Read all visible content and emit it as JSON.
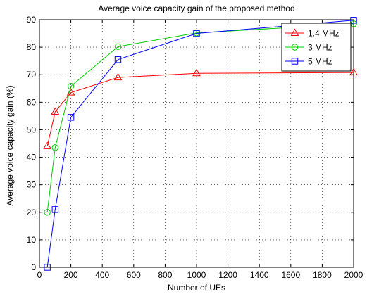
{
  "chart_data": {
    "type": "line",
    "title": "Average voice capacity gain of the proposed method",
    "xlabel": "Number of UEs",
    "ylabel": "Average voice capacity gain (%)",
    "xlim": [
      0,
      2000
    ],
    "ylim": [
      0,
      90
    ],
    "xticks": [
      0,
      200,
      400,
      600,
      800,
      1000,
      1200,
      1400,
      1600,
      1800,
      2000
    ],
    "yticks": [
      0,
      10,
      20,
      30,
      40,
      50,
      60,
      70,
      80,
      90
    ],
    "grid": true,
    "legend_position": "top-right",
    "series": [
      {
        "name": "1.4 MHz",
        "color": "#ff0000",
        "marker": "triangle",
        "x": [
          50,
          100,
          200,
          500,
          1000,
          2000
        ],
        "y": [
          44,
          56.5,
          63.5,
          69,
          70.5,
          70.8
        ]
      },
      {
        "name": "3 MHz",
        "color": "#00cc00",
        "marker": "circle",
        "x": [
          50,
          100,
          200,
          500,
          1000,
          2000
        ],
        "y": [
          20,
          43.5,
          65.8,
          80.2,
          85.2,
          88.5
        ]
      },
      {
        "name": "5 MHz",
        "color": "#0000ff",
        "marker": "square",
        "x": [
          50,
          100,
          200,
          500,
          1000,
          2000
        ],
        "y": [
          0,
          21,
          54.5,
          75.5,
          85,
          89.8
        ]
      }
    ]
  }
}
